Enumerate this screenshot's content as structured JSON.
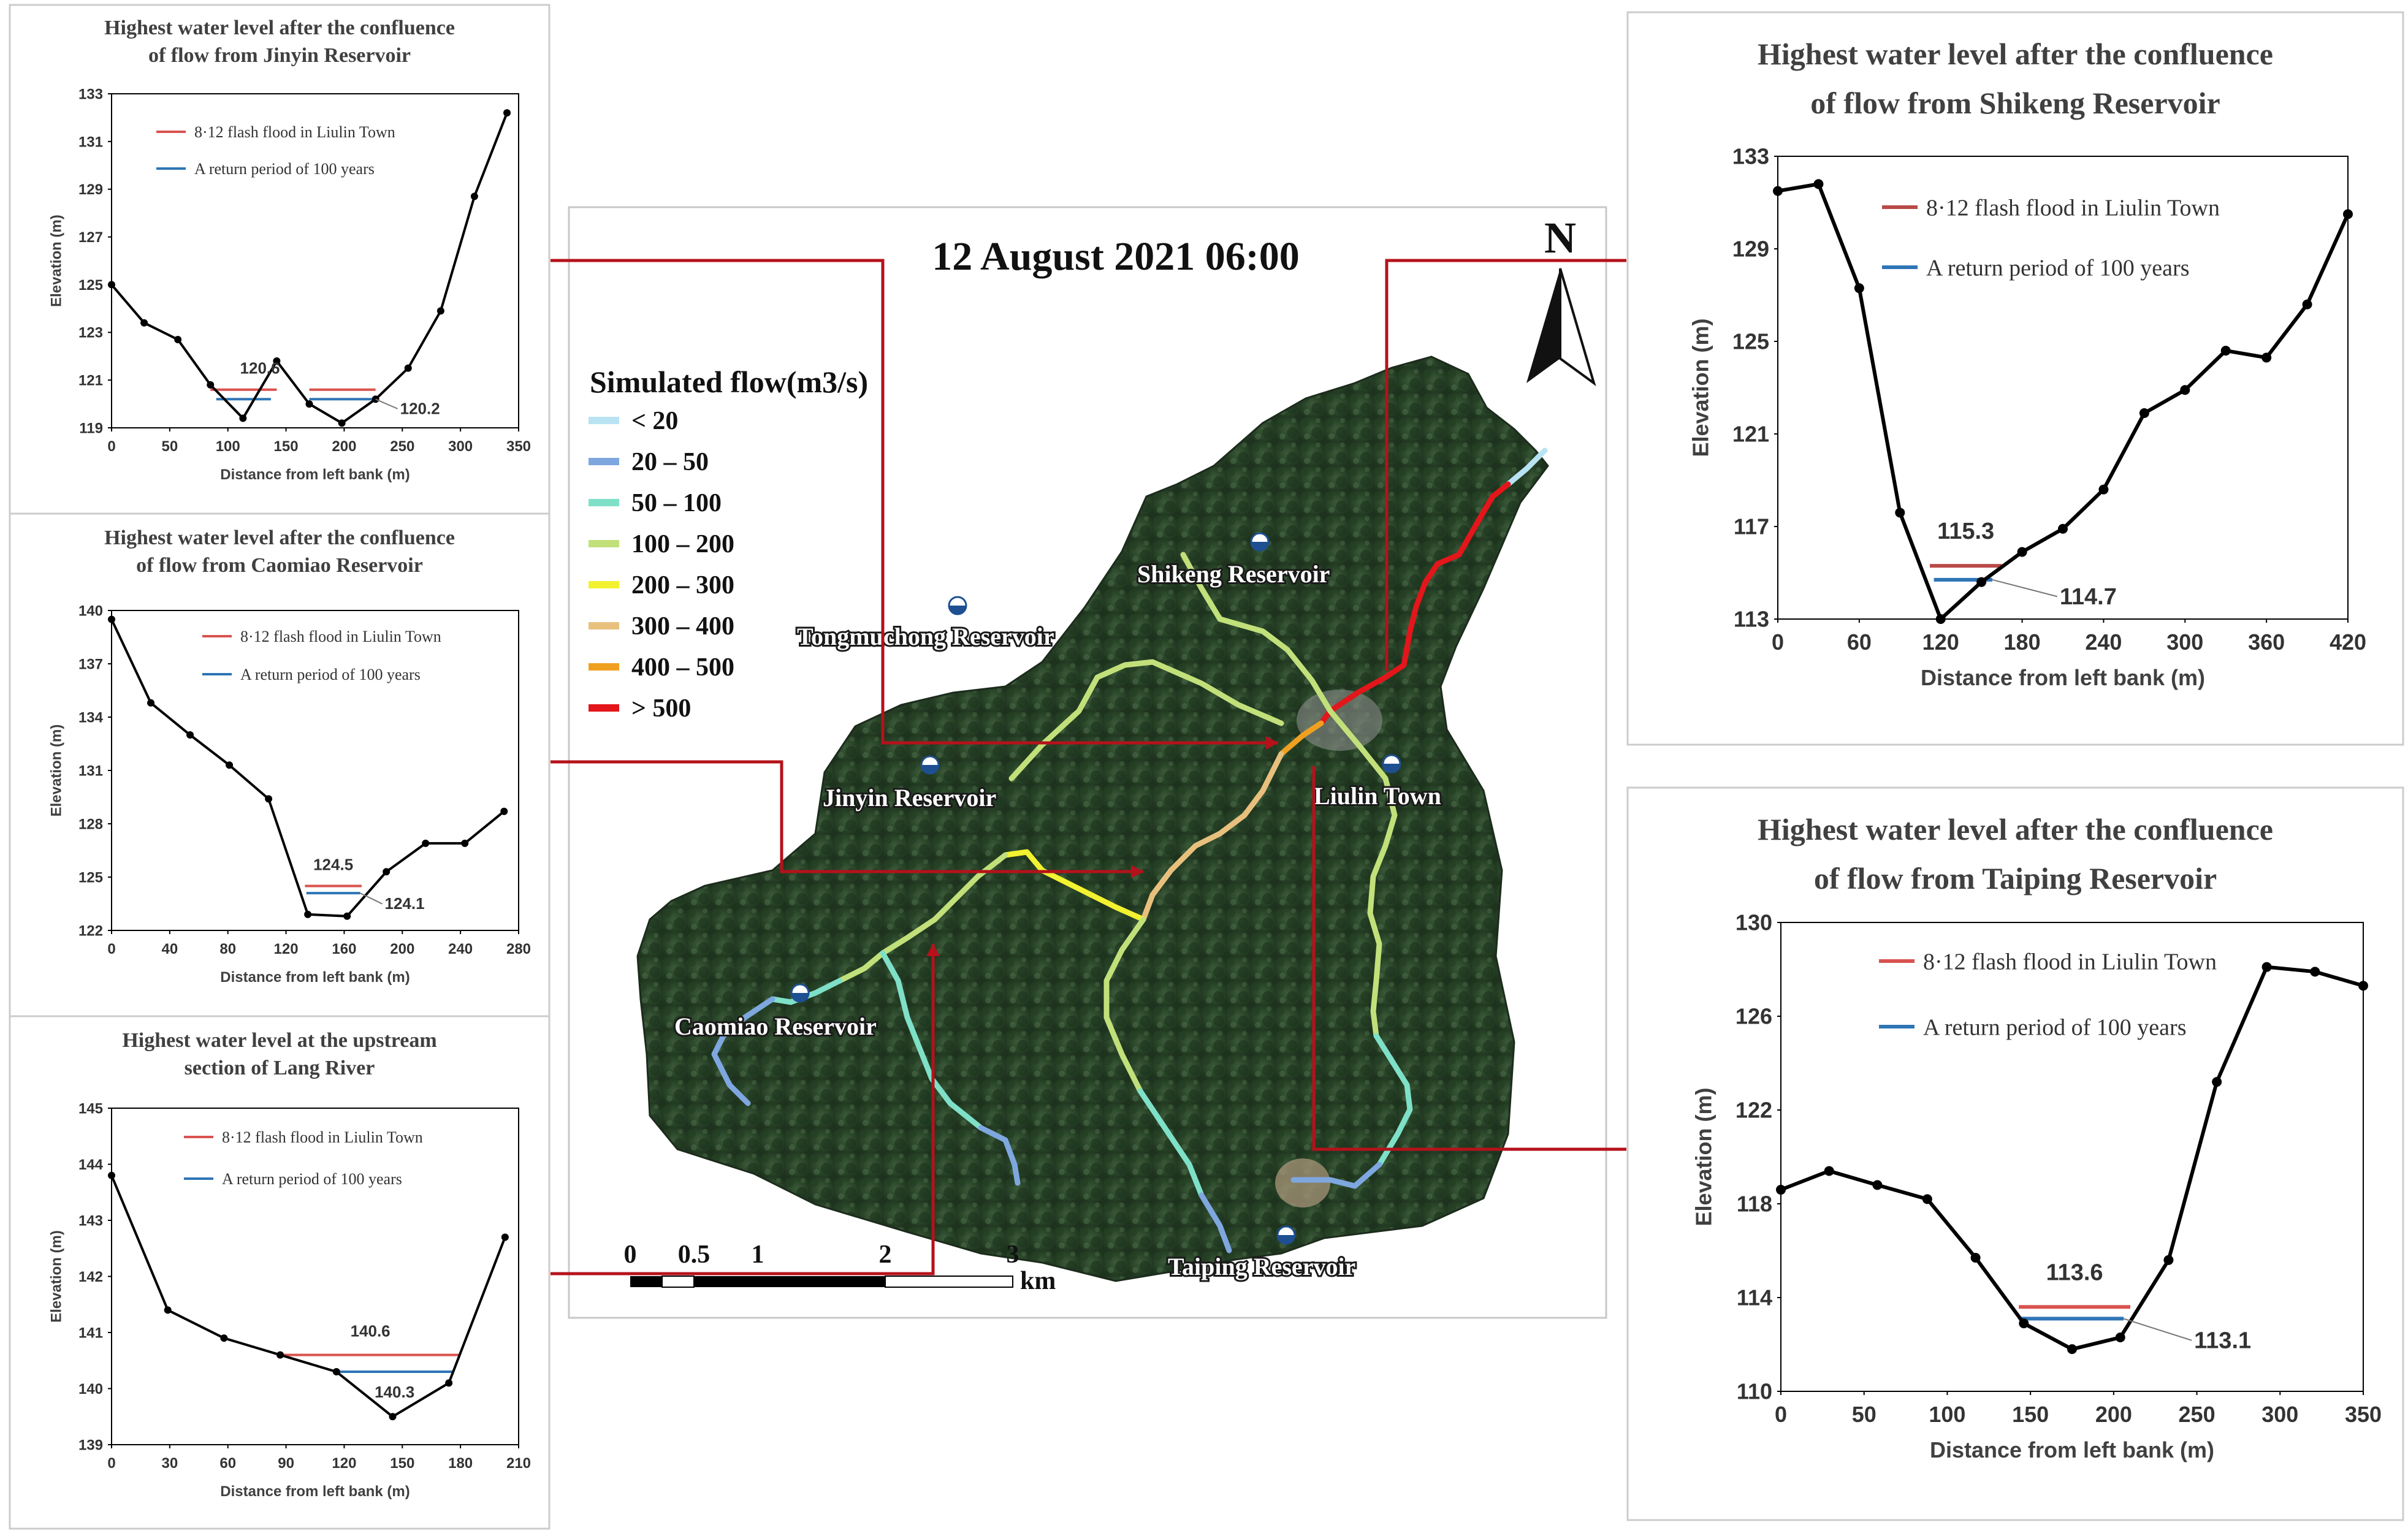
{
  "map": {
    "title": "12 August 2021 06:00",
    "legend_title": "Simulated flow(m3/s)",
    "legend_items": [
      {
        "label": "< 20",
        "color": "#b9e3f2"
      },
      {
        "label": "20 – 50",
        "color": "#7fa7df"
      },
      {
        "label": "50 – 100",
        "color": "#7fe0c8"
      },
      {
        "label": "100 – 200",
        "color": "#c2e07a"
      },
      {
        "label": "200 – 300",
        "color": "#f2f230"
      },
      {
        "label": "300 – 400",
        "color": "#e8c07e"
      },
      {
        "label": "400 – 500",
        "color": "#f0a020"
      },
      {
        "label": "> 500",
        "color": "#e3161b"
      }
    ],
    "north_label": "N",
    "places": [
      "Shikeng Reservoir",
      "Tongmuchong Reservoir",
      "Jinyin Reservoir",
      "Liulin Town",
      "Caomiao Reservoir",
      "Taiping Reservoir"
    ],
    "scale_labels": [
      "0",
      "0.5",
      "1",
      "2",
      "3"
    ],
    "scale_unit": "km",
    "connector_color": "#b5121b"
  },
  "chart_data": [
    {
      "type": "line",
      "title_lines": [
        "Highest water level after the confluence",
        "of flow from Jinyin Reservoir"
      ],
      "xlabel": "Distance from left bank (m)",
      "ylabel": "Elevation (m)",
      "xlim": [
        0,
        350
      ],
      "ylim": [
        119,
        133
      ],
      "xticks": [
        0,
        50,
        100,
        150,
        200,
        250,
        300,
        350
      ],
      "yticks": [
        119,
        121,
        123,
        125,
        127,
        129,
        131,
        133
      ],
      "grid": false,
      "series": [
        {
          "name": "",
          "style": "profile",
          "color": "#000000",
          "x": [
            0,
            28,
            57,
            85,
            113,
            142,
            170,
            198,
            227,
            255,
            283,
            312,
            340
          ],
          "y": [
            125.0,
            123.4,
            122.7,
            120.8,
            119.4,
            121.8,
            120.0,
            119.2,
            120.2,
            121.5,
            123.9,
            128.7,
            132.2
          ]
        },
        {
          "name": "8·12 flash flood in Liulin Town",
          "style": "level",
          "color": "#d9534f",
          "x": [
            85,
            142
          ],
          "y": [
            120.6,
            120.6
          ],
          "x2": [
            170,
            227
          ]
        },
        {
          "name": "A return period of 100 years",
          "style": "level",
          "color": "#2e75b6",
          "x": [
            90,
            137
          ],
          "y": [
            120.2,
            120.2
          ],
          "x2": [
            170,
            227
          ]
        }
      ],
      "annotations": [
        "120.6",
        "120.2"
      ]
    },
    {
      "type": "line",
      "title_lines": [
        "Highest water level after the confluence",
        "of flow from Caomiao Reservoir"
      ],
      "xlabel": "Distance from left bank (m)",
      "ylabel": "Elevation (m)",
      "xlim": [
        0,
        280
      ],
      "ylim": [
        122,
        140
      ],
      "xticks": [
        0,
        40,
        80,
        120,
        160,
        200,
        240,
        280
      ],
      "yticks": [
        122,
        125,
        128,
        131,
        134,
        137,
        140
      ],
      "grid": false,
      "series": [
        {
          "name": "",
          "style": "profile",
          "color": "#000000",
          "x": [
            0,
            27,
            54,
            81,
            108,
            135,
            162,
            189,
            216,
            243,
            270
          ],
          "y": [
            139.5,
            134.8,
            133.0,
            131.3,
            129.4,
            122.9,
            122.8,
            125.3,
            126.9,
            126.9,
            128.7
          ]
        },
        {
          "name": "8·12 flash flood in Liulin Town",
          "style": "level",
          "color": "#d9534f",
          "x": [
            133,
            172
          ],
          "y": [
            124.5,
            124.5
          ]
        },
        {
          "name": "A return period of 100 years",
          "style": "level",
          "color": "#2e75b6",
          "x": [
            134,
            171
          ],
          "y": [
            124.1,
            124.1
          ]
        }
      ],
      "annotations": [
        "124.5",
        "124.1"
      ]
    },
    {
      "type": "line",
      "title_lines": [
        "Highest water level at the upstream",
        "section of Lang River"
      ],
      "xlabel": "Distance from left bank (m)",
      "ylabel": "Elevation (m)",
      "xlim": [
        0,
        210
      ],
      "ylim": [
        139,
        145
      ],
      "xticks": [
        0,
        30,
        60,
        90,
        120,
        150,
        180,
        210
      ],
      "yticks": [
        139,
        140,
        141,
        142,
        143,
        144,
        145
      ],
      "grid": false,
      "series": [
        {
          "name": "",
          "style": "profile",
          "color": "#000000",
          "x": [
            0,
            29,
            58,
            87,
            116,
            145,
            174,
            203
          ],
          "y": [
            143.8,
            141.4,
            140.9,
            140.6,
            140.3,
            139.5,
            140.1,
            142.7
          ]
        },
        {
          "name": "8·12 flash flood in Liulin Town",
          "style": "level",
          "color": "#d9534f",
          "x": [
            87,
            180
          ],
          "y": [
            140.6,
            140.6
          ]
        },
        {
          "name": "A return period of 100 years",
          "style": "level",
          "color": "#2e75b6",
          "x": [
            116,
            176
          ],
          "y": [
            140.3,
            140.3
          ]
        }
      ],
      "annotations": [
        "140.6",
        "140.3"
      ]
    },
    {
      "type": "line",
      "title_lines": [
        "Highest water level after the confluence",
        "of flow from Shikeng Reservoir"
      ],
      "xlabel": "Distance from left bank (m)",
      "ylabel": "Elevation (m)",
      "xlim": [
        0,
        420
      ],
      "ylim": [
        113,
        133
      ],
      "xticks": [
        0,
        60,
        120,
        180,
        240,
        300,
        360,
        420
      ],
      "yticks": [
        113,
        117,
        121,
        125,
        129,
        133
      ],
      "grid": false,
      "series": [
        {
          "name": "",
          "style": "profile",
          "color": "#000000",
          "x": [
            0,
            30,
            60,
            90,
            120,
            150,
            180,
            210,
            240,
            270,
            300,
            330,
            360,
            390,
            420
          ],
          "y": [
            131.5,
            131.8,
            127.3,
            117.6,
            113.0,
            114.6,
            115.9,
            116.9,
            118.6,
            121.9,
            122.9,
            124.6,
            124.3,
            126.6,
            130.5
          ]
        },
        {
          "name": "8·12 flash flood in Liulin Town",
          "style": "level",
          "color": "#b94a48",
          "x": [
            112,
            165
          ],
          "y": [
            115.3,
            115.3
          ]
        },
        {
          "name": "A return period of 100 years",
          "style": "level",
          "color": "#2e75b6",
          "x": [
            115,
            158
          ],
          "y": [
            114.7,
            114.7
          ]
        }
      ],
      "annotations": [
        "115.3",
        "114.7"
      ]
    },
    {
      "type": "line",
      "title_lines": [
        "Highest water level after the confluence",
        "of flow from Taiping Reservoir"
      ],
      "xlabel": "Distance from left bank (m)",
      "ylabel": "Elevation (m)",
      "xlim": [
        0,
        350
      ],
      "ylim": [
        110,
        130
      ],
      "xticks": [
        0,
        50,
        100,
        150,
        200,
        250,
        300,
        350
      ],
      "yticks": [
        110,
        114,
        118,
        122,
        126,
        130
      ],
      "grid": false,
      "series": [
        {
          "name": "",
          "style": "profile",
          "color": "#000000",
          "x": [
            0,
            29,
            58,
            88,
            117,
            146,
            175,
            204,
            233,
            262,
            292,
            321,
            350
          ],
          "y": [
            118.6,
            119.4,
            118.8,
            118.2,
            115.7,
            112.9,
            111.8,
            112.3,
            115.6,
            123.2,
            128.1,
            127.9,
            127.3
          ]
        },
        {
          "name": "8·12 flash flood in Liulin Town",
          "style": "level",
          "color": "#d9534f",
          "x": [
            143,
            210
          ],
          "y": [
            113.6,
            113.6
          ]
        },
        {
          "name": "A return period of 100 years",
          "style": "level",
          "color": "#2e75b6",
          "x": [
            143,
            206
          ],
          "y": [
            113.1,
            113.1
          ]
        }
      ],
      "annotations": [
        "113.6",
        "113.1"
      ]
    }
  ]
}
